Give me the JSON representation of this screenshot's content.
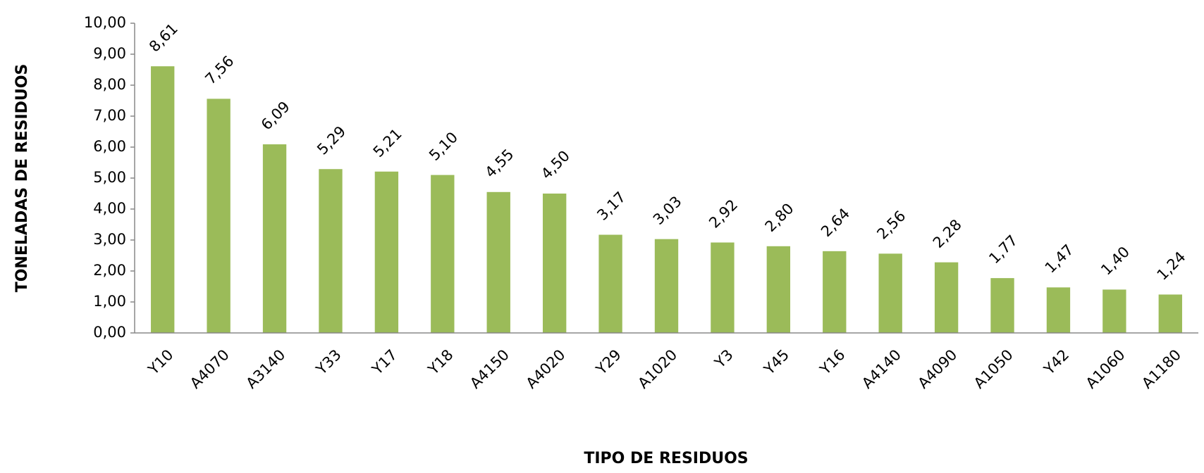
{
  "chart_data": {
    "type": "bar",
    "x_label": "TIPO DE RESIDUOS",
    "y_label": "TONELADAS DE RESIDUOS",
    "categories": [
      "Y10",
      "A4070",
      "A3140",
      "Y33",
      "Y17",
      "Y18",
      "A4150",
      "A4020",
      "Y29",
      "A1020",
      "Y3",
      "Y45",
      "Y16",
      "A4140",
      "A4090",
      "A1050",
      "Y42",
      "A1060",
      "A1180"
    ],
    "values": [
      8.61,
      7.56,
      6.09,
      5.29,
      5.21,
      5.1,
      4.55,
      4.5,
      3.17,
      3.03,
      2.92,
      2.8,
      2.64,
      2.56,
      2.28,
      1.77,
      1.47,
      1.4,
      1.24
    ],
    "value_labels": [
      "8,61",
      "7,56",
      "6,09",
      "5,29",
      "5,21",
      "5,10",
      "4,55",
      "4,50",
      "3,17",
      "3,03",
      "2,92",
      "2,80",
      "2,64",
      "2,56",
      "2,28",
      "1,77",
      "1,47",
      "1,40",
      "1,24"
    ],
    "color": "#9bbb59",
    "ylim": [
      0,
      10
    ],
    "yticks": [
      {
        "value": 0,
        "label": "0,00"
      },
      {
        "value": 1,
        "label": "1,00"
      },
      {
        "value": 2,
        "label": "2,00"
      },
      {
        "value": 3,
        "label": "3,00"
      },
      {
        "value": 4,
        "label": "4,00"
      },
      {
        "value": 5,
        "label": "5,00"
      },
      {
        "value": 6,
        "label": "6,00"
      },
      {
        "value": 7,
        "label": "7,00"
      },
      {
        "value": 8,
        "label": "8,00"
      },
      {
        "value": 9,
        "label": "9,00"
      },
      {
        "value": 10,
        "label": "10,00"
      }
    ],
    "grid": false
  }
}
